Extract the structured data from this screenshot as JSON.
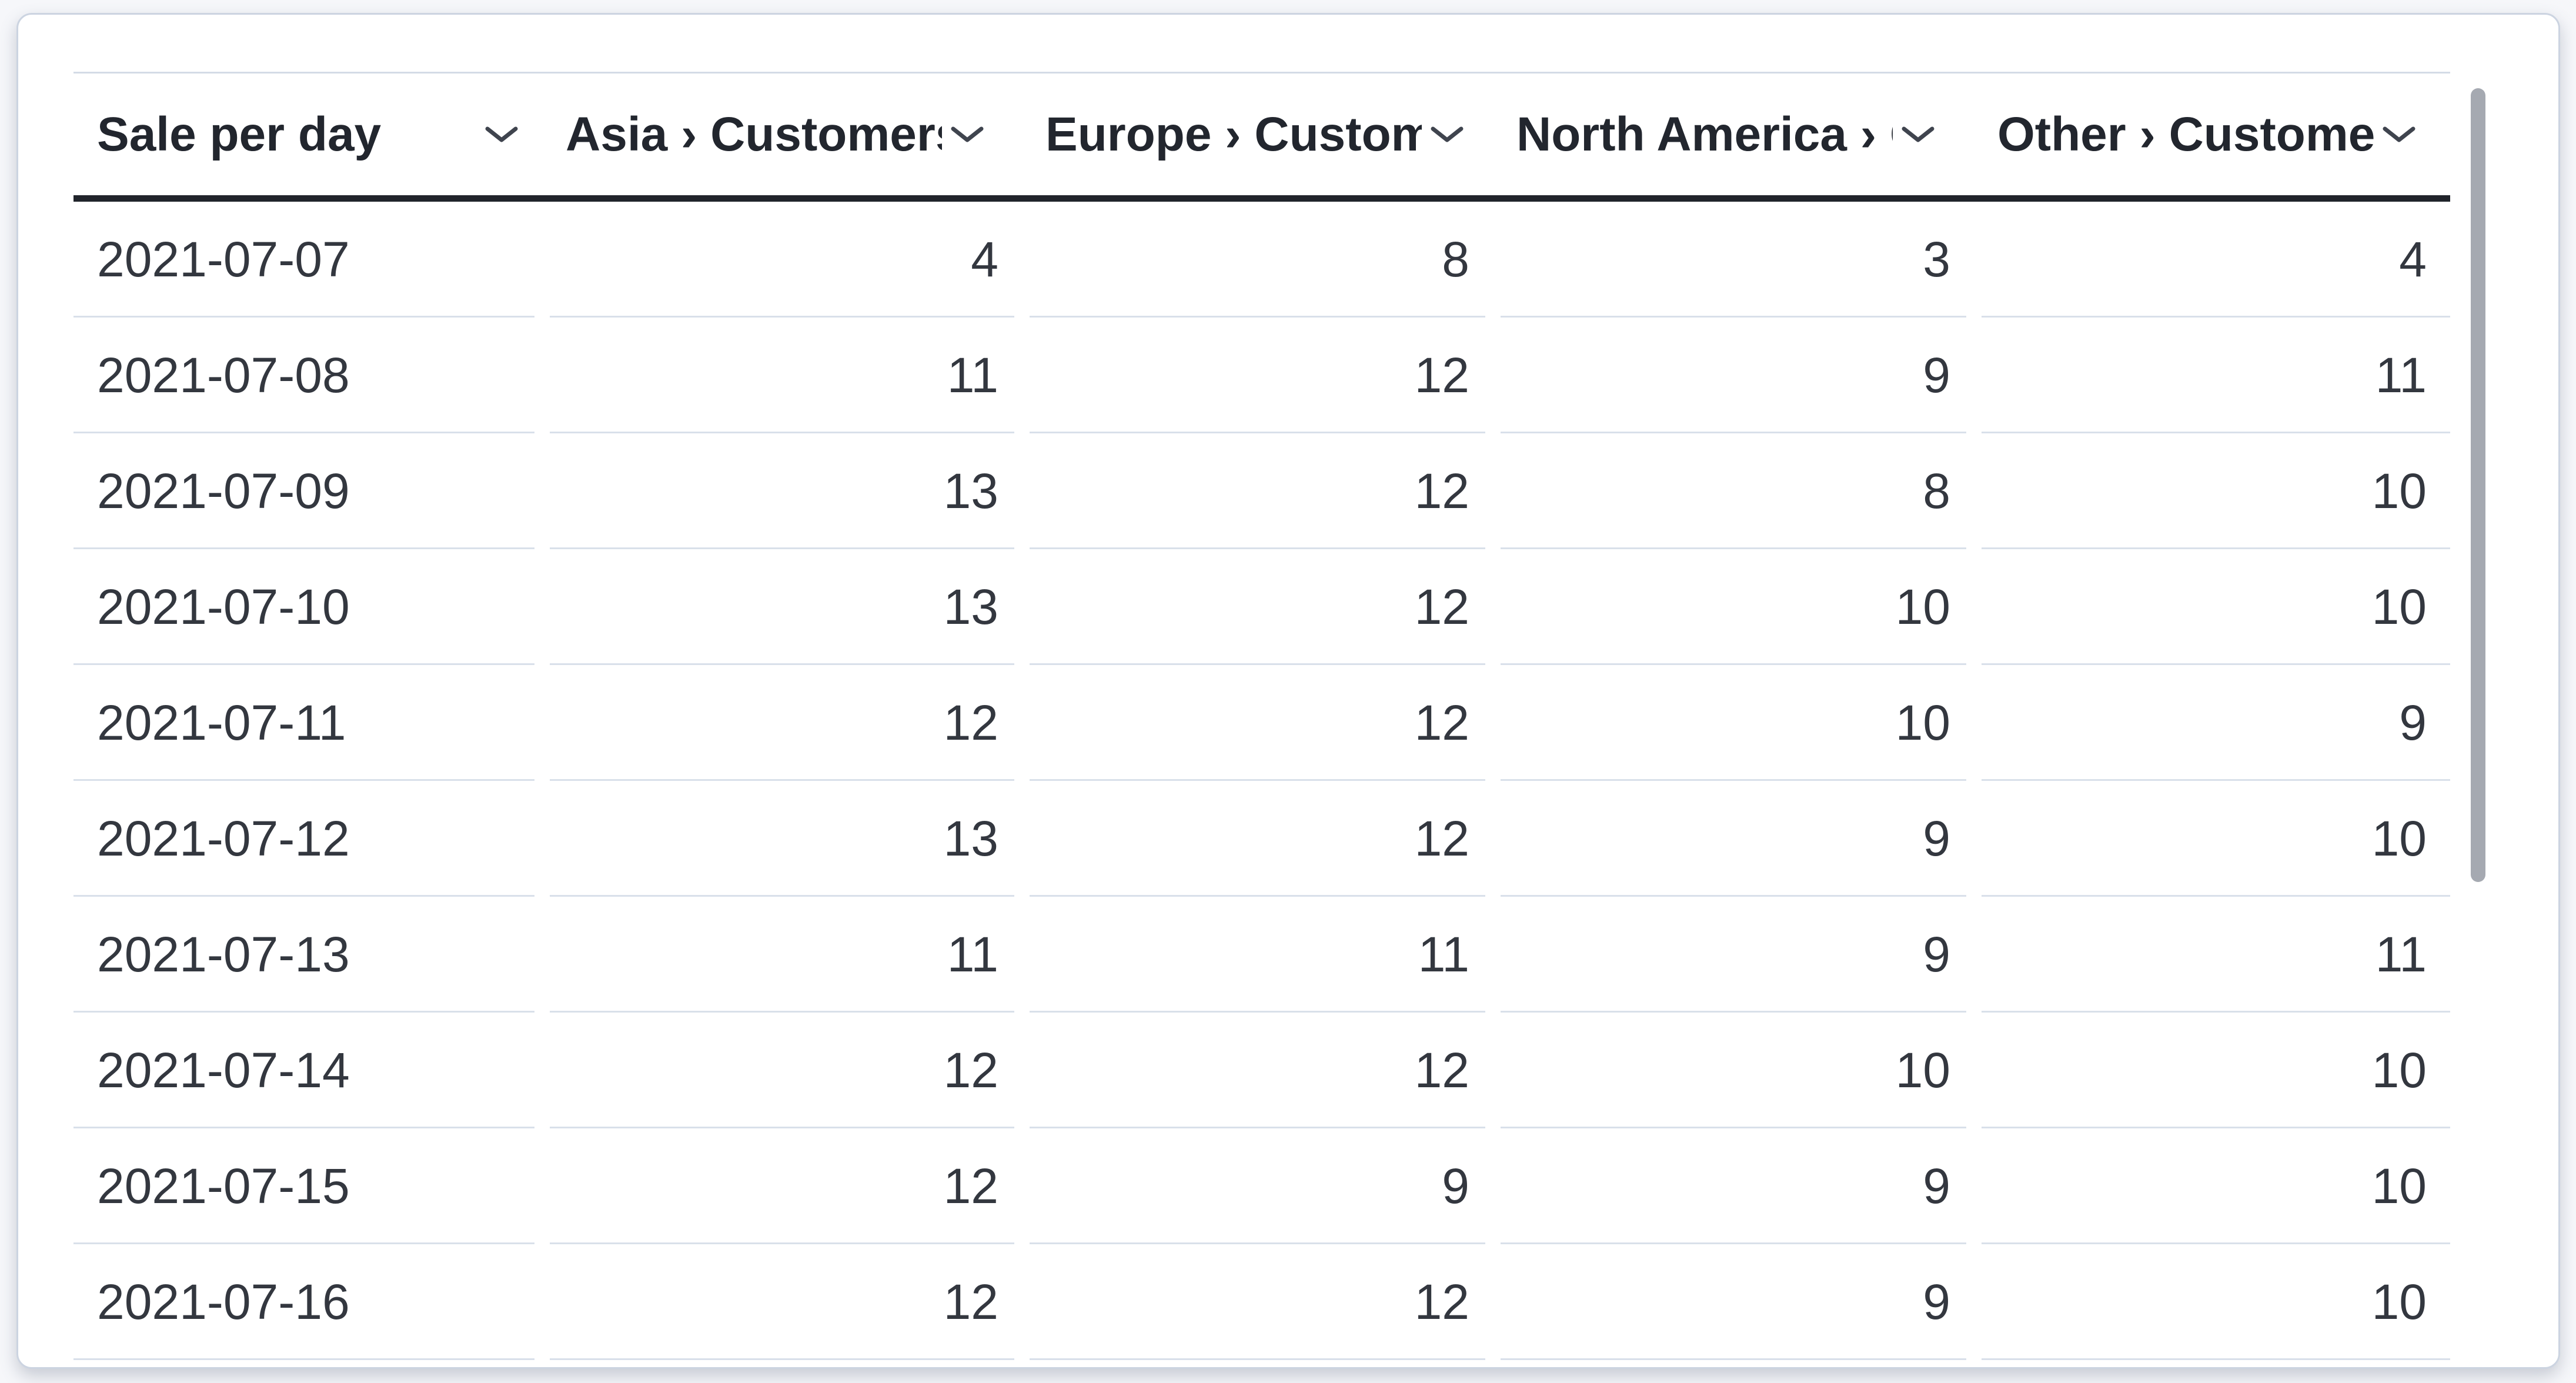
{
  "card": {
    "kind": "table-visualization-card"
  },
  "table": {
    "columns": [
      {
        "id": "date",
        "label": "Sale per day",
        "align": "left"
      },
      {
        "id": "asia",
        "label": "Asia › Customers",
        "align": "right"
      },
      {
        "id": "europe",
        "label": "Europe › Customers",
        "align": "right"
      },
      {
        "id": "north_america",
        "label": "North America › Customers",
        "align": "right"
      },
      {
        "id": "other",
        "label": "Other › Customers",
        "align": "right"
      }
    ],
    "rows": [
      [
        "2021-07-07",
        "4",
        "8",
        "3",
        "4"
      ],
      [
        "2021-07-08",
        "11",
        "12",
        "9",
        "11"
      ],
      [
        "2021-07-09",
        "13",
        "12",
        "8",
        "10"
      ],
      [
        "2021-07-10",
        "13",
        "12",
        "10",
        "10"
      ],
      [
        "2021-07-11",
        "12",
        "12",
        "10",
        "9"
      ],
      [
        "2021-07-12",
        "13",
        "12",
        "9",
        "10"
      ],
      [
        "2021-07-13",
        "11",
        "11",
        "9",
        "11"
      ],
      [
        "2021-07-14",
        "12",
        "12",
        "10",
        "10"
      ],
      [
        "2021-07-15",
        "12",
        "9",
        "9",
        "10"
      ],
      [
        "2021-07-16",
        "12",
        "12",
        "9",
        "10"
      ]
    ]
  },
  "chart_data": {
    "type": "table",
    "title": "Sale per day",
    "categories": [
      "2021-07-07",
      "2021-07-08",
      "2021-07-09",
      "2021-07-10",
      "2021-07-11",
      "2021-07-12",
      "2021-07-13",
      "2021-07-14",
      "2021-07-15",
      "2021-07-16"
    ],
    "series": [
      {
        "name": "Asia › Customers",
        "values": [
          4,
          11,
          13,
          13,
          12,
          13,
          11,
          12,
          12,
          12
        ]
      },
      {
        "name": "Europe › Customers",
        "values": [
          8,
          12,
          12,
          12,
          12,
          12,
          11,
          12,
          9,
          12
        ]
      },
      {
        "name": "North America › Customers",
        "values": [
          3,
          9,
          8,
          10,
          10,
          9,
          9,
          10,
          9,
          9
        ]
      },
      {
        "name": "Other › Customers",
        "values": [
          4,
          11,
          10,
          10,
          9,
          10,
          11,
          10,
          10,
          10
        ]
      }
    ]
  },
  "icons": {
    "column_sort": "chevron-down-icon"
  },
  "scrollbar": {
    "visible": true
  },
  "colors": {
    "page_bg": "#f6f7fa",
    "card_border": "#ccd4e1",
    "header_text": "#22262e",
    "cell_text": "#33373f",
    "header_rule": "#21242b",
    "header_topline": "#d4dbe6",
    "row_separator": "#d9e0ea",
    "scrollbar_thumb": "#a5a9b1"
  }
}
